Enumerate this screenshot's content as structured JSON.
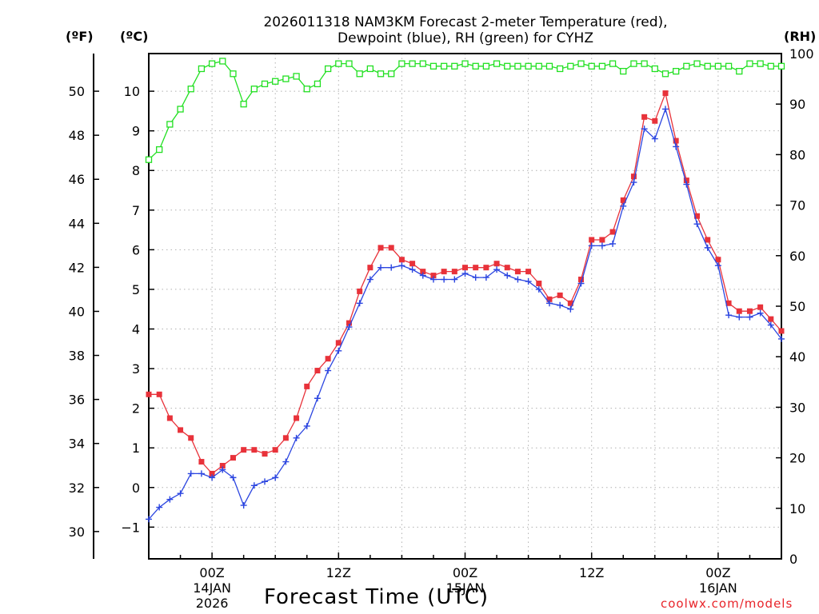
{
  "chart_data": {
    "type": "line",
    "title_line1": "2026011318 NAM3KM Forecast 2-meter Temperature (red),",
    "title_line2": "Dewpoint (blue), RH (green) for CYHZ",
    "xlabel": "Forecast Time (UTC)",
    "credit": "coolwx.com/models",
    "units": {
      "f": "(ºF)",
      "c": "(ºC)",
      "rh": "(RH)"
    },
    "x_start_hours": -6,
    "x_end_hours": 54,
    "x_step_hours": 1,
    "c_axis": {
      "min": -1.8,
      "max": 10.95,
      "ticks": [
        -1,
        0,
        1,
        2,
        3,
        4,
        5,
        6,
        7,
        8,
        9,
        10
      ]
    },
    "f_axis": {
      "ticks": [
        30,
        32,
        34,
        36,
        38,
        40,
        42,
        44,
        46,
        48,
        50
      ]
    },
    "rh_axis": {
      "min": 0,
      "max": 100,
      "ticks": [
        0,
        10,
        20,
        30,
        40,
        50,
        60,
        70,
        80,
        90,
        100
      ]
    },
    "x_ticks": [
      {
        "hour": 0,
        "lines": [
          "00Z",
          "14JAN",
          "2026"
        ]
      },
      {
        "hour": 12,
        "lines": [
          "12Z"
        ]
      },
      {
        "hour": 24,
        "lines": [
          "00Z",
          "15JAN"
        ]
      },
      {
        "hour": 36,
        "lines": [
          "12Z"
        ]
      },
      {
        "hour": 48,
        "lines": [
          "00Z",
          "16JAN"
        ]
      }
    ],
    "series": [
      {
        "name": "Temperature",
        "color": "#e8323a",
        "marker": "filled-square",
        "values": [
          2.35,
          2.35,
          1.75,
          1.45,
          1.25,
          0.65,
          0.35,
          0.55,
          0.75,
          0.95,
          0.95,
          0.85,
          0.95,
          1.25,
          1.75,
          2.55,
          2.95,
          3.25,
          3.65,
          4.15,
          4.95,
          5.55,
          6.05,
          6.05,
          5.75,
          5.65,
          5.45,
          5.35,
          5.45,
          5.45,
          5.55,
          5.55,
          5.55,
          5.65,
          5.55,
          5.45,
          5.45,
          5.15,
          4.75,
          4.85,
          4.65,
          5.25,
          6.25,
          6.25,
          6.45,
          7.25,
          7.85,
          9.35,
          9.25,
          9.95,
          8.75,
          7.75,
          6.85,
          6.25,
          5.75,
          4.65,
          4.45,
          4.45,
          4.55,
          4.25,
          3.95
        ]
      },
      {
        "name": "Dewpoint",
        "color": "#2b45e0",
        "marker": "plus",
        "values": [
          -0.8,
          -0.5,
          -0.3,
          -0.15,
          0.35,
          0.35,
          0.25,
          0.45,
          0.25,
          -0.45,
          0.05,
          0.15,
          0.25,
          0.65,
          1.25,
          1.55,
          2.25,
          2.95,
          3.45,
          4.05,
          4.65,
          5.25,
          5.55,
          5.55,
          5.6,
          5.5,
          5.35,
          5.25,
          5.25,
          5.25,
          5.4,
          5.3,
          5.3,
          5.5,
          5.35,
          5.25,
          5.2,
          5.0,
          4.65,
          4.6,
          4.5,
          5.15,
          6.1,
          6.1,
          6.15,
          7.1,
          7.7,
          9.05,
          8.8,
          9.55,
          8.6,
          7.65,
          6.65,
          6.05,
          5.6,
          4.35,
          4.3,
          4.3,
          4.4,
          4.1,
          3.75
        ]
      },
      {
        "name": "RH",
        "color": "#22e022",
        "marker": "open-square",
        "values": [
          79,
          81,
          86,
          89,
          93,
          97,
          98,
          98.5,
          96,
          90,
          93,
          94,
          94.5,
          95,
          95.5,
          93,
          94,
          97,
          98,
          98,
          96,
          97,
          96,
          96,
          98,
          98,
          98,
          97.5,
          97.5,
          97.5,
          98,
          97.5,
          97.5,
          98,
          97.5,
          97.5,
          97.5,
          97.5,
          97.5,
          97,
          97.5,
          98,
          97.5,
          97.5,
          98,
          96.5,
          98,
          98,
          97,
          96,
          96.5,
          97.5,
          98,
          97.5,
          97.5,
          97.5,
          96.5,
          98,
          98,
          97.5,
          97.5
        ]
      }
    ]
  }
}
